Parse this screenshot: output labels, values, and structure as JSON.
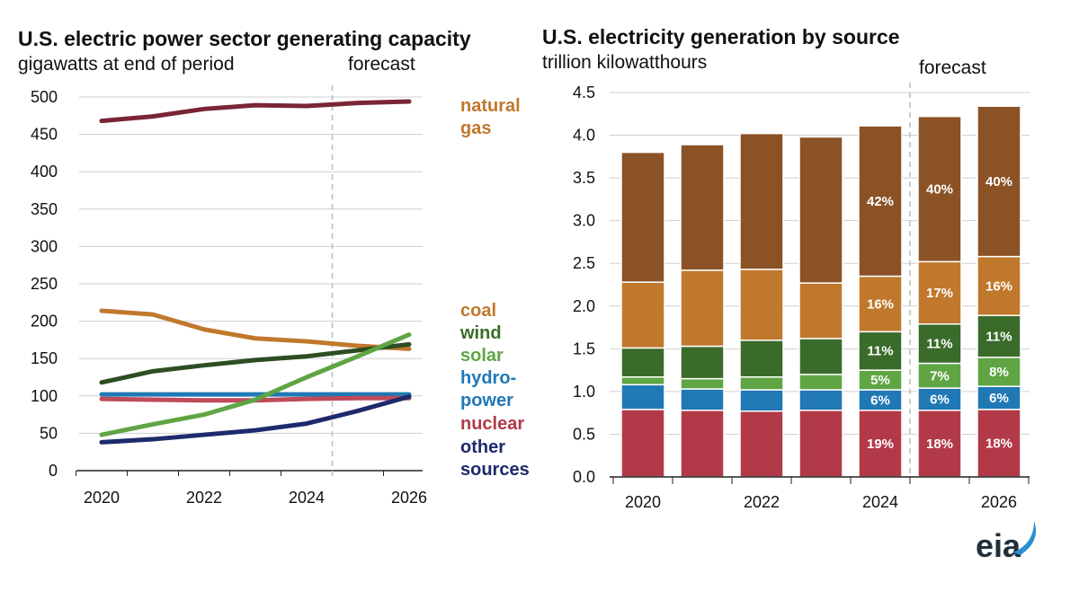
{
  "left_chart": {
    "title": "U.S. electric power sector generating capacity",
    "subtitle": "gigawatts at end of period",
    "forecast_label": "forecast"
  },
  "right_chart": {
    "title": "U.S. electricity generation by source",
    "subtitle": "trillion kilowatthours",
    "forecast_label": "forecast"
  },
  "logo": "eia",
  "colors": {
    "natural_gas_line": "#7a2536",
    "natural_gas_bar": "#8b5226",
    "natural_gas_text": "#c0782c",
    "coal": "#c0782c",
    "wind": "#3a6b2a",
    "wind_line": "#2d4d22",
    "solar": "#5fa544",
    "hydropower": "#2079b5",
    "nuclear": "#b23a48",
    "nuclear_line": "#c04a5a",
    "other": "#1d2a6b",
    "gridline": "#cfcfcf",
    "forecast_line": "#bbbbbb"
  },
  "chart_data": [
    {
      "type": "line",
      "title": "U.S. electric power sector generating capacity",
      "subtitle": "gigawatts at end of period",
      "x": [
        2020,
        2021,
        2022,
        2023,
        2024,
        2025,
        2026
      ],
      "x_ticks": [
        "2020",
        "2022",
        "2024",
        "2026"
      ],
      "y_ticks": [
        "0",
        "50",
        "100",
        "150",
        "200",
        "250",
        "300",
        "350",
        "400",
        "450",
        "500"
      ],
      "ylim": [
        0,
        500
      ],
      "xlim": [
        2020,
        2026
      ],
      "forecast_start": 2024.5,
      "series": [
        {
          "key": "natural_gas",
          "values": [
            468,
            474,
            484,
            489,
            488,
            492,
            494
          ]
        },
        {
          "key": "coal",
          "values": [
            214,
            209,
            189,
            177,
            173,
            167,
            163
          ]
        },
        {
          "key": "wind",
          "values": [
            118,
            133,
            141,
            148,
            153,
            161,
            169
          ]
        },
        {
          "key": "solar",
          "values": [
            48,
            62,
            75,
            95,
            125,
            153,
            182
          ]
        },
        {
          "key": "hydropower",
          "values": [
            102,
            102,
            102,
            102,
            102,
            102,
            102
          ]
        },
        {
          "key": "nuclear",
          "values": [
            96,
            95,
            94,
            94,
            96,
            97,
            97
          ]
        },
        {
          "key": "other",
          "values": [
            38,
            42,
            48,
            54,
            63,
            80,
            99
          ]
        }
      ],
      "legend": [
        {
          "key": "natural_gas",
          "lines": [
            "natural",
            "gas"
          ]
        },
        {
          "key": "coal",
          "lines": [
            "coal"
          ]
        },
        {
          "key": "wind",
          "lines": [
            "wind"
          ]
        },
        {
          "key": "solar",
          "lines": [
            "solar"
          ]
        },
        {
          "key": "hydropower",
          "lines": [
            "hydro-",
            "power"
          ]
        },
        {
          "key": "nuclear",
          "lines": [
            "nuclear"
          ]
        },
        {
          "key": "other",
          "lines": [
            "other",
            "sources"
          ]
        }
      ]
    },
    {
      "type": "bar",
      "stacked": true,
      "title": "U.S. electricity generation by source",
      "subtitle": "trillion kilowatthours",
      "categories": [
        "2020",
        "2021",
        "2022",
        "2023",
        "2024",
        "2025",
        "2026"
      ],
      "x_ticks": [
        "2020",
        "2022",
        "2024",
        "2026"
      ],
      "y_ticks": [
        "0.0",
        "0.5",
        "1.0",
        "1.5",
        "2.0",
        "2.5",
        "3.0",
        "3.5",
        "4.0",
        "4.5"
      ],
      "ylim": [
        0,
        4.5
      ],
      "forecast_start": 2024.5,
      "series": [
        {
          "key": "nuclear",
          "values": [
            0.79,
            0.78,
            0.77,
            0.78,
            0.78,
            0.78,
            0.79
          ],
          "labels": [
            "",
            "",
            "",
            "",
            "19%",
            "18%",
            "18%"
          ]
        },
        {
          "key": "hydropower",
          "values": [
            0.29,
            0.25,
            0.25,
            0.24,
            0.24,
            0.26,
            0.27
          ],
          "labels": [
            "",
            "",
            "",
            "",
            "6%",
            "6%",
            "6%"
          ]
        },
        {
          "key": "solar",
          "values": [
            0.09,
            0.12,
            0.15,
            0.18,
            0.23,
            0.29,
            0.34
          ],
          "labels": [
            "",
            "",
            "",
            "",
            "5%",
            "7%",
            "8%"
          ]
        },
        {
          "key": "wind",
          "values": [
            0.34,
            0.38,
            0.43,
            0.42,
            0.45,
            0.46,
            0.49
          ],
          "labels": [
            "",
            "",
            "",
            "",
            "11%",
            "11%",
            "11%"
          ]
        },
        {
          "key": "coal",
          "values": [
            0.77,
            0.89,
            0.83,
            0.65,
            0.65,
            0.73,
            0.69
          ],
          "labels": [
            "",
            "",
            "",
            "",
            "16%",
            "17%",
            "16%"
          ]
        },
        {
          "key": "natural_gas",
          "values": [
            1.52,
            1.47,
            1.59,
            1.71,
            1.76,
            1.7,
            1.76
          ],
          "labels": [
            "",
            "",
            "",
            "",
            "42%",
            "40%",
            "40%"
          ]
        }
      ]
    }
  ]
}
